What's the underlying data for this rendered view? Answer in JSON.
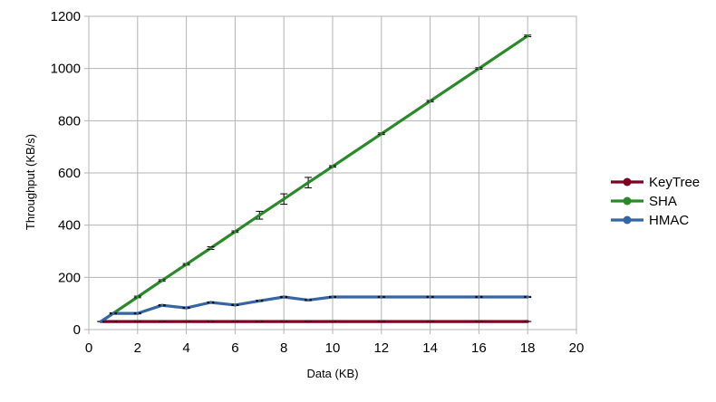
{
  "chart_data": {
    "type": "line",
    "title": "",
    "xlabel": "Data (KB)",
    "ylabel": "Throughput (KB/s)",
    "xlim": [
      0,
      20
    ],
    "ylim": [
      0,
      1200
    ],
    "xticks": [
      "0",
      "2",
      "4",
      "6",
      "8",
      "10",
      "12",
      "14",
      "16",
      "18",
      "20"
    ],
    "yticks": [
      "0",
      "200",
      "400",
      "600",
      "800",
      "1000",
      "1200"
    ],
    "grid": true,
    "legend_position": "right",
    "series": [
      {
        "name": "KeyTree",
        "color": "#7e0021",
        "x": [
          0.5,
          1,
          2,
          3,
          4,
          5,
          6,
          7,
          8,
          9,
          10,
          12,
          14,
          16,
          18
        ],
        "y": [
          31,
          31,
          31,
          31,
          31,
          31,
          31,
          31,
          31,
          31,
          31,
          31,
          31,
          31,
          31
        ],
        "err": [
          0,
          0,
          0,
          0,
          0,
          0,
          0,
          0,
          0,
          0,
          0,
          0,
          0,
          0,
          0
        ]
      },
      {
        "name": "SHA",
        "color": "#2a8a2a",
        "x": [
          0.5,
          1,
          2,
          3,
          4,
          5,
          6,
          7,
          8,
          9,
          10,
          12,
          14,
          16,
          18
        ],
        "y": [
          31,
          62,
          125,
          188,
          250,
          312,
          375,
          438,
          500,
          563,
          625,
          750,
          875,
          1000,
          1125
        ],
        "err": [
          0,
          2,
          3,
          3,
          3,
          5,
          3,
          15,
          20,
          20,
          3,
          3,
          3,
          3,
          3
        ]
      },
      {
        "name": "HMAC",
        "color": "#3465a4",
        "x": [
          0.5,
          1,
          2,
          3,
          4,
          5,
          6,
          7,
          8,
          9,
          10,
          12,
          14,
          16,
          18
        ],
        "y": [
          31,
          62,
          62,
          93,
          83,
          104,
          94,
          110,
          125,
          113,
          125,
          125,
          125,
          125,
          125
        ],
        "err": [
          0,
          2,
          2,
          2,
          2,
          2,
          2,
          2,
          2,
          2,
          2,
          2,
          2,
          2,
          2
        ]
      }
    ]
  }
}
